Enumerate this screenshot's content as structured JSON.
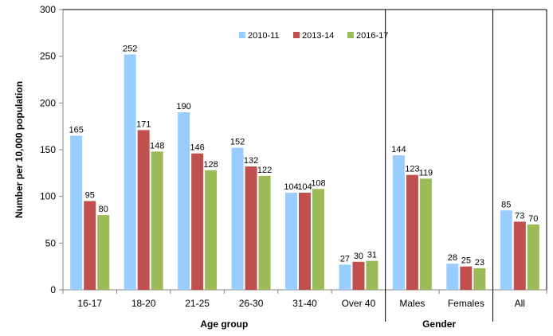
{
  "chart_data": {
    "type": "bar",
    "ylabel": "Number per 10,000 population",
    "ylim": [
      0,
      300
    ],
    "yticks": [
      0,
      50,
      100,
      150,
      200,
      250,
      300
    ],
    "grid": false,
    "legend_position": "top-center",
    "categories": [
      "16-17",
      "18-20",
      "21-25",
      "26-30",
      "31-40",
      "Over 40",
      "Males",
      "Females",
      "All"
    ],
    "groups": [
      {
        "label": "Age group",
        "categories": [
          "16-17",
          "18-20",
          "21-25",
          "26-30",
          "31-40",
          "Over 40"
        ]
      },
      {
        "label": "Gender",
        "categories": [
          "Males",
          "Females"
        ]
      },
      {
        "label": "",
        "categories": [
          "All"
        ]
      }
    ],
    "series": [
      {
        "name": "2010-11",
        "color": "#99ccff",
        "values": [
          165,
          252,
          190,
          152,
          104,
          27,
          144,
          28,
          85
        ]
      },
      {
        "name": "2013-14",
        "color": "#c0504d",
        "values": [
          95,
          171,
          146,
          132,
          104,
          30,
          123,
          25,
          73
        ]
      },
      {
        "name": "2016-17",
        "color": "#9bbb59",
        "values": [
          80,
          148,
          128,
          122,
          108,
          31,
          119,
          23,
          70
        ]
      }
    ]
  }
}
